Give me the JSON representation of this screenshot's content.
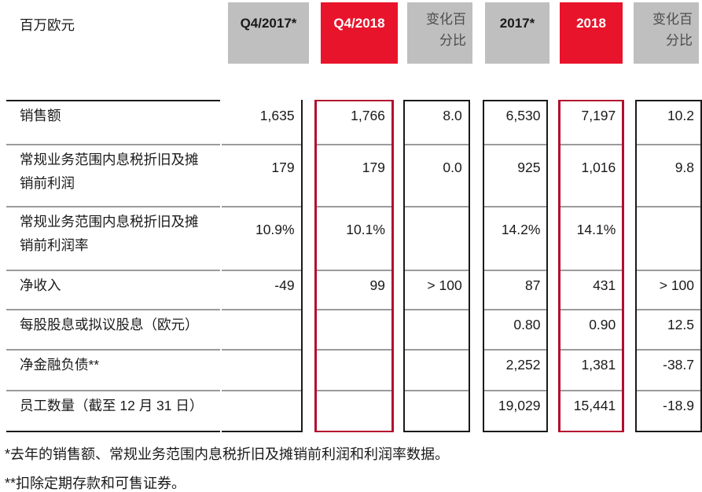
{
  "header": {
    "unit_label": "百万欧元",
    "columns": [
      {
        "key": "q4_2017",
        "label": "Q4/2017*",
        "style": "grey"
      },
      {
        "key": "q4_2018",
        "label": "Q4/2018",
        "style": "red"
      },
      {
        "key": "change_q4",
        "label": "变化百分比",
        "style": "muted"
      },
      {
        "key": "fy_2017",
        "label": "2017*",
        "style": "grey"
      },
      {
        "key": "fy_2018",
        "label": "2018",
        "style": "red"
      },
      {
        "key": "change_fy",
        "label": "变化百分比",
        "style": "muted"
      }
    ]
  },
  "rows": [
    {
      "label": "销售额",
      "values": [
        "1,635",
        "1,766",
        "8.0",
        "6,530",
        "7,197",
        "10.2"
      ]
    },
    {
      "label": "常规业务范围内息税折旧及摊\n销前利润",
      "values": [
        "179",
        "179",
        "0.0",
        "925",
        "1,016",
        "9.8"
      ]
    },
    {
      "label": "常规业务范围内息税折旧及摊\n销前利润率",
      "values": [
        "10.9%",
        "10.1%",
        "",
        "14.2%",
        "14.1%",
        ""
      ]
    },
    {
      "label": "净收入",
      "values": [
        "-49",
        "99",
        "> 100",
        "87",
        "431",
        "> 100"
      ]
    },
    {
      "label": "每股股息或拟议股息（欧元）",
      "values": [
        "",
        "",
        "",
        "0.80",
        "0.90",
        "12.5"
      ]
    },
    {
      "label": "净金融负债**",
      "values": [
        "",
        "",
        "",
        "2,252",
        "1,381",
        "-38.7"
      ]
    },
    {
      "label": "员工数量（截至 12 月 31 日）",
      "values": [
        "",
        "",
        "",
        "19,029",
        "15,441",
        "-18.9"
      ]
    }
  ],
  "footnotes": [
    "*去年的销售额、常规业务范围内息税折旧及摊销前利润和利润率数据。",
    "**扣除定期存款和可售证券。"
  ],
  "colors": {
    "highlight_red": "#e8142b",
    "border_red": "#b30d2e",
    "header_grey": "#bfbfbf",
    "muted_text": "#4d4d4d",
    "divider_grey": "#9b9b9b",
    "line_black": "#1a1a1a"
  }
}
